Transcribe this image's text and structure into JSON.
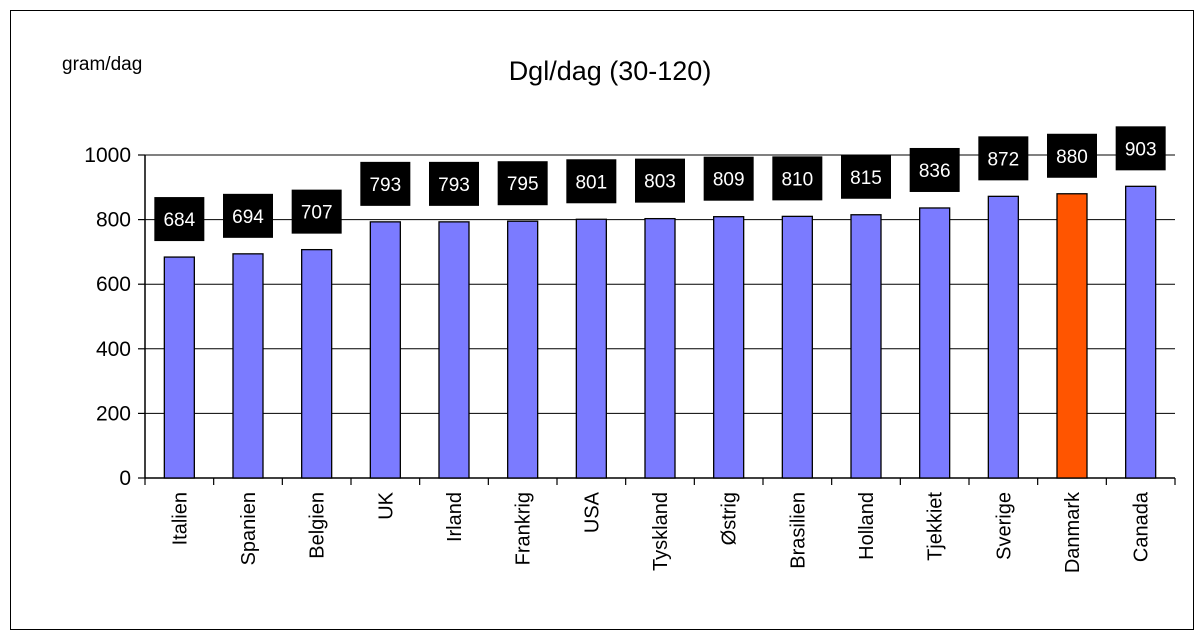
{
  "chart_data": {
    "type": "bar",
    "title": "Dgl/dag  (30-120)",
    "ylabel": "gram/dag",
    "xlabel": "",
    "ylim": [
      0,
      1000
    ],
    "yticks": [
      0,
      200,
      400,
      600,
      800,
      1000
    ],
    "grid": true,
    "legend": "none",
    "categories": [
      "Italien",
      "Spanien",
      "Belgien",
      "UK",
      "Irland",
      "Frankrig",
      "USA",
      "Tyskland",
      "Østrig",
      "Brasilien",
      "Holland",
      "Tjekkiet",
      "Sverige",
      "Danmark",
      "Canada"
    ],
    "values": [
      684,
      694,
      707,
      793,
      793,
      795,
      801,
      803,
      809,
      810,
      815,
      836,
      872,
      880,
      903
    ],
    "data_labels": [
      "684",
      "694",
      "707",
      "793",
      "793",
      "795",
      "801",
      "803",
      "809",
      "810",
      "815",
      "836",
      "872",
      "880",
      "903"
    ],
    "colors": {
      "bar": "#7b7bff",
      "highlight": "#ff5500",
      "label_box": "#000000",
      "label_text": "#ffffff"
    },
    "highlight_category": "Danmark"
  }
}
